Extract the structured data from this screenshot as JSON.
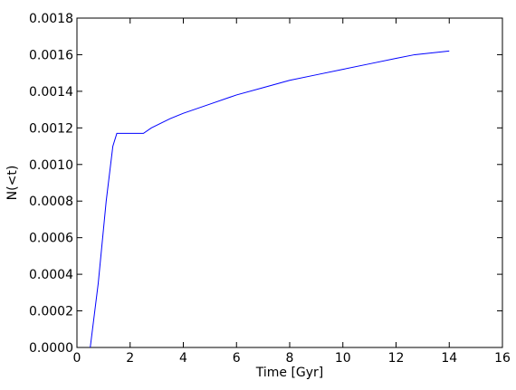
{
  "chart_data": {
    "type": "line",
    "x_label": "Time [Gyr]",
    "y_label": "N(<t)",
    "x": [
      0.5,
      0.8,
      1.1,
      1.35,
      1.5,
      2.5,
      2.8,
      3.5,
      4,
      5,
      6,
      7,
      8,
      9,
      10,
      11,
      12,
      12.7,
      14
    ],
    "series": [
      {
        "color": "#0000ff",
        "values": [
          0,
          0.00035,
          0.0008,
          0.0011,
          0.00117,
          0.00117,
          0.0012,
          0.00125,
          0.00128,
          0.00133,
          0.00138,
          0.00142,
          0.00146,
          0.00149,
          0.00152,
          0.00155,
          0.00158,
          0.0016,
          0.00162
        ]
      }
    ],
    "xlim": [
      0,
      16
    ],
    "xticks": [
      0,
      2,
      4,
      6,
      8,
      10,
      12,
      14,
      16
    ],
    "ylim": [
      0,
      0.0018
    ],
    "yticks": [
      {
        "value": 0,
        "label": "0.0000"
      },
      {
        "value": 0.0002,
        "label": "0.0002"
      },
      {
        "value": 0.0004,
        "label": "0.0004"
      },
      {
        "value": 0.0006,
        "label": "0.0006"
      },
      {
        "value": 0.0008,
        "label": "0.0008"
      },
      {
        "value": 0.001,
        "label": "0.0010"
      },
      {
        "value": 0.0012,
        "label": "0.0012"
      },
      {
        "value": 0.0014,
        "label": "0.0014"
      },
      {
        "value": 0.0016,
        "label": "0.0016"
      },
      {
        "value": 0.0018,
        "label": "0.0018"
      }
    ]
  }
}
